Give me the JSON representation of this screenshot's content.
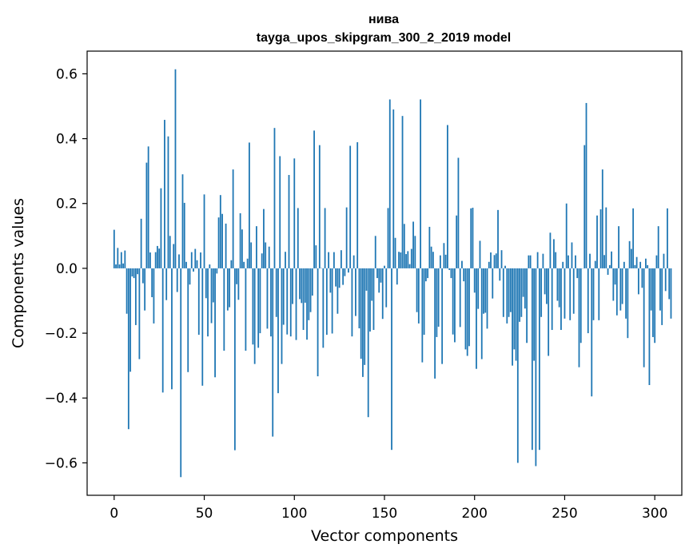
{
  "chart_data": {
    "type": "bar",
    "title": "нива",
    "subtitle": "tayga_upos_skipgram_300_2_2019 model",
    "xlabel": "Vector components",
    "ylabel": "Components values",
    "xlim": [
      -15,
      315
    ],
    "ylim": [
      -0.7,
      0.67
    ],
    "xticks": [
      0,
      50,
      100,
      150,
      200,
      250,
      300
    ],
    "xtick_labels": [
      "0",
      "50",
      "100",
      "150",
      "200",
      "250",
      "300"
    ],
    "yticks": [
      -0.6,
      -0.4,
      -0.2,
      0.0,
      0.2,
      0.4,
      0.6
    ],
    "ytick_labels": [
      "−0.6",
      "−0.4",
      "−0.2",
      "0.0",
      "0.2",
      "0.4",
      "0.6"
    ],
    "grid": false,
    "bar_color": "#1f77b4",
    "values": [
      0.119,
      0.012,
      0.063,
      0.012,
      0.05,
      0.015,
      0.055,
      -0.14,
      -0.496,
      -0.319,
      -0.025,
      -0.03,
      -0.175,
      -0.018,
      -0.28,
      0.153,
      -0.046,
      -0.13,
      0.326,
      0.376,
      0.049,
      -0.089,
      -0.17,
      0.05,
      0.069,
      0.061,
      0.247,
      -0.383,
      0.458,
      -0.098,
      0.407,
      0.1,
      -0.373,
      0.075,
      0.614,
      -0.073,
      0.043,
      -0.644,
      0.29,
      0.202,
      0.02,
      -0.32,
      -0.05,
      0.05,
      -0.01,
      0.06,
      0.025,
      -0.205,
      0.049,
      -0.362,
      0.228,
      -0.092,
      -0.21,
      0.012,
      -0.169,
      -0.105,
      -0.336,
      -0.016,
      0.157,
      0.226,
      0.168,
      -0.254,
      0.138,
      -0.13,
      -0.12,
      0.025,
      0.305,
      -0.561,
      -0.049,
      -0.097,
      0.17,
      0.12,
      0.02,
      -0.254,
      0.03,
      0.388,
      0.08,
      -0.235,
      -0.295,
      0.13,
      -0.245,
      -0.2,
      0.046,
      0.183,
      0.08,
      -0.186,
      0.067,
      -0.21,
      -0.519,
      0.433,
      -0.15,
      -0.385,
      0.346,
      -0.295,
      -0.174,
      0.051,
      -0.204,
      0.288,
      -0.21,
      -0.11,
      0.339,
      -0.221,
      0.186,
      -0.095,
      -0.107,
      -0.19,
      -0.106,
      -0.22,
      -0.16,
      -0.135,
      -0.084,
      0.425,
      0.071,
      -0.333,
      0.38,
      0.001,
      -0.245,
      0.186,
      -0.205,
      0.05,
      -0.075,
      -0.201,
      0.05,
      -0.056,
      -0.14,
      -0.06,
      0.056,
      -0.051,
      -0.024,
      0.188,
      -0.013,
      0.378,
      -0.21,
      0.04,
      -0.147,
      0.389,
      -0.185,
      -0.279,
      -0.335,
      -0.298,
      -0.069,
      -0.459,
      -0.195,
      -0.1,
      -0.19,
      0.1,
      -0.03,
      -0.075,
      -0.044,
      -0.156,
      0.008,
      -0.12,
      0.186,
      0.521,
      -0.56,
      0.49,
      0.094,
      -0.05,
      0.051,
      0.049,
      0.47,
      0.137,
      0.044,
      0.053,
      0.013,
      0.06,
      0.144,
      0.1,
      -0.135,
      -0.17,
      0.521,
      -0.29,
      -0.205,
      -0.04,
      -0.03,
      0.128,
      0.067,
      0.051,
      -0.34,
      -0.212,
      -0.18,
      0.04,
      -0.295,
      0.078,
      0.042,
      0.442,
      -0.005,
      -0.03,
      -0.204,
      -0.228,
      0.163,
      0.341,
      -0.181,
      0.023,
      -0.04,
      -0.25,
      -0.27,
      -0.24,
      0.185,
      0.187,
      -0.075,
      -0.31,
      -0.125,
      0.085,
      -0.28,
      -0.14,
      -0.137,
      -0.186,
      0.02,
      0.049,
      -0.093,
      0.041,
      0.046,
      0.18,
      -0.038,
      0.056,
      -0.15,
      0.008,
      -0.17,
      -0.15,
      -0.135,
      -0.3,
      -0.25,
      -0.285,
      -0.6,
      -0.165,
      -0.15,
      -0.088,
      -0.124,
      -0.23,
      0.04,
      0.04,
      -0.56,
      -0.285,
      -0.61,
      0.05,
      -0.56,
      -0.15,
      0.045,
      -0.08,
      -0.11,
      -0.27,
      0.11,
      -0.19,
      0.09,
      0.05,
      -0.1,
      -0.12,
      -0.19,
      0.02,
      -0.155,
      0.2,
      0.04,
      -0.16,
      0.08,
      -0.14,
      0.04,
      -0.03,
      -0.305,
      -0.23,
      0.0,
      0.38,
      0.51,
      -0.2,
      0.045,
      -0.395,
      -0.16,
      0.023,
      0.163,
      -0.16,
      0.182,
      0.305,
      0.041,
      0.188,
      -0.02,
      0.01,
      0.052,
      -0.1,
      -0.05,
      -0.145,
      0.13,
      -0.13,
      -0.11,
      0.02,
      -0.155,
      -0.215,
      0.084,
      0.06,
      0.185,
      0.01,
      0.035,
      -0.08,
      0.02,
      -0.06,
      -0.305,
      0.03,
      0.01,
      -0.36,
      -0.13,
      -0.212,
      -0.23,
      0.04,
      0.13,
      -0.13,
      -0.175,
      0.045,
      -0.07,
      0.185,
      -0.095,
      -0.155
    ]
  }
}
